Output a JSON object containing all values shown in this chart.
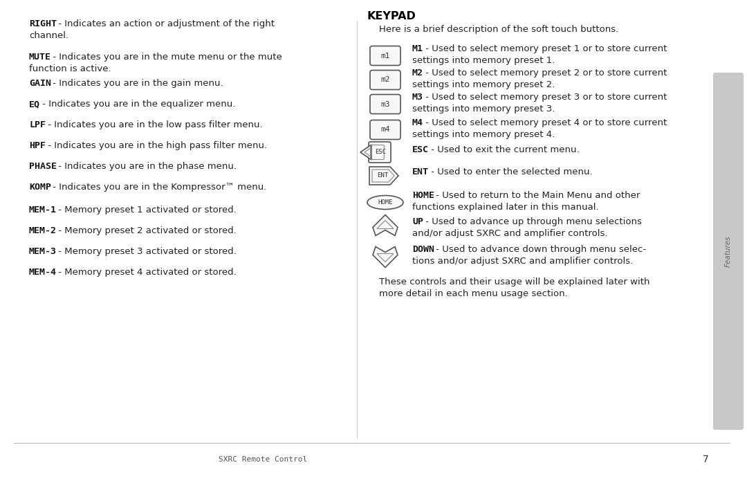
{
  "bg_color": "#ffffff",
  "sidebar_color": "#c8c8c8",
  "text_color": "#1a1a1a",
  "bold_color": "#000000",
  "left_col_items": [
    {
      "bold": "RIGHT",
      "text": " - Indicates an action or adjustment of the right channel.",
      "wrap": true
    },
    {
      "bold": "MUTE",
      "text": " - Indicates you are in the mute menu or the mute function is active.",
      "wrap": true
    },
    {
      "bold": "GAIN",
      "text": " - Indicates you are in the gain menu.",
      "wrap": false
    },
    {
      "bold": "EQ",
      "text": " - Indicates you are in the equalizer menu.",
      "wrap": false
    },
    {
      "bold": "LPF",
      "text": " - Indicates you are in the low pass filter menu.",
      "wrap": false
    },
    {
      "bold": "HPF",
      "text": " - Indicates you are in the high pass filter menu.",
      "wrap": false
    },
    {
      "bold": "PHASE",
      "text": " - Indicates you are in the phase menu.",
      "wrap": false
    },
    {
      "bold": "KOMP",
      "text": " - Indicates you are in the Kompressor™ menu.",
      "wrap": false
    },
    {
      "bold": "MEM-1",
      "text": " - Memory preset 1 activated or stored.",
      "wrap": false
    },
    {
      "bold": "MEM-2",
      "text": " - Memory preset 2 activated or stored.",
      "wrap": false
    },
    {
      "bold": "MEM-3",
      "text": " - Memory preset 3 activated or stored.",
      "wrap": false
    },
    {
      "bold": "MEM-4",
      "text": " - Memory preset 4 activated or stored.",
      "wrap": false
    }
  ],
  "right_title": "KEYPAD",
  "right_subtitle": "Here is a brief description of the soft touch buttons.",
  "right_items": [
    {
      "icon": "m1",
      "bold": "M1",
      "line1": " - Used to select memory preset 1 or to store current",
      "line2": "settings into memory preset 1."
    },
    {
      "icon": "m2",
      "bold": "M2",
      "line1": " - Used to select memory preset 2 or to store current",
      "line2": "settings into memory preset 2."
    },
    {
      "icon": "m3",
      "bold": "M3",
      "line1": " - Used to select memory preset 3 or to store current",
      "line2": "settings into memory preset 3."
    },
    {
      "icon": "m4",
      "bold": "M4",
      "line1": " - Used to select memory preset 4 or to store current",
      "line2": "settings into memory preset 4."
    },
    {
      "icon": "esc",
      "bold": "ESC",
      "line1": " - Used to exit the current menu.",
      "line2": ""
    },
    {
      "icon": "ent",
      "bold": "ENT",
      "line1": " - Used to enter the selected menu.",
      "line2": ""
    },
    {
      "icon": "home",
      "bold": "HOME",
      "line1": " - Used to return to the Main Menu and other",
      "line2": "functions explained later in this manual."
    },
    {
      "icon": "up",
      "bold": "UP",
      "line1": " - Used to advance up through menu selections",
      "line2": "and/or adjust SXRC and amplifier controls."
    },
    {
      "icon": "down",
      "bold": "DOWN",
      "line1": " - Used to advance down through menu selec-",
      "line2": "tions and/or adjust SXRC and amplifier controls."
    }
  ],
  "right_footer_line1": "These controls and their usage will be explained later with",
  "right_footer_line2": "more detail in each menu usage section.",
  "footer_center": "SXRC Remote Control",
  "footer_page": "7"
}
